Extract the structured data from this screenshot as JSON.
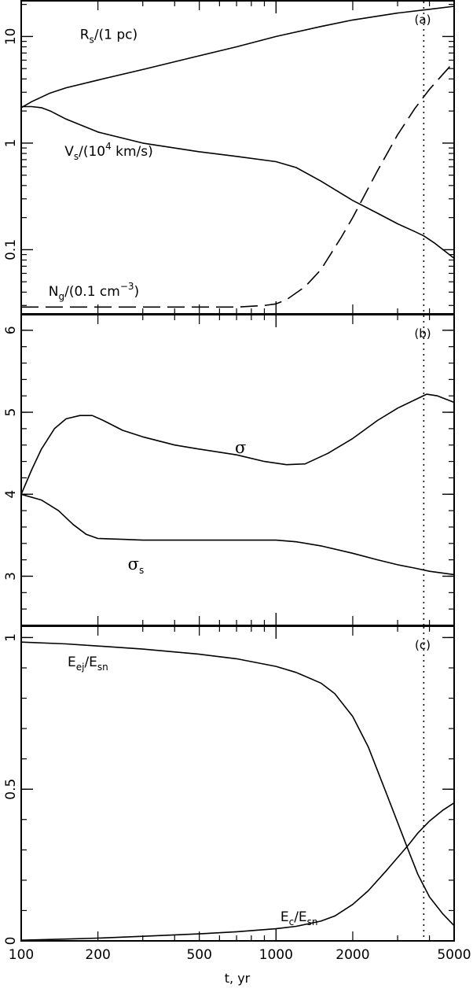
{
  "chart_data": [
    {
      "type": "line",
      "panel": "(a)",
      "x_scale": "log",
      "y_scale": "log",
      "xlim": [
        100,
        5000
      ],
      "ylim": [
        0.025,
        22
      ],
      "y_ticks": [
        {
          "v": 0.1,
          "label": "0.1"
        },
        {
          "v": 1,
          "label": "1"
        },
        {
          "v": 10,
          "label": "10"
        }
      ],
      "vline_x": 3800,
      "series": [
        {
          "id": "Rs",
          "style": "solid",
          "label": {
            "base": "R",
            "sub": "s",
            "rest": "/(1 pc)",
            "at_x": 170,
            "at_y": 9.5
          },
          "x": [
            100,
            110,
            130,
            150,
            200,
            300,
            500,
            700,
            1000,
            1500,
            2000,
            3000,
            4000,
            5000
          ],
          "y": [
            2.15,
            2.45,
            2.95,
            3.3,
            3.9,
            4.9,
            6.6,
            8.0,
            10.0,
            12.4,
            14.3,
            16.6,
            18.0,
            19.2
          ]
        },
        {
          "id": "Vs",
          "style": "solid",
          "label": {
            "base": "V",
            "sub": "s",
            "rest": "/(10",
            "sup": "4",
            "rest2": " km/s)",
            "at_x": 148,
            "at_y": 0.76
          },
          "x": [
            100,
            110,
            120,
            130,
            150,
            200,
            300,
            500,
            700,
            1000,
            1200,
            1500,
            2000,
            2500,
            3000,
            3500,
            3800,
            4200,
            5000
          ],
          "y": [
            2.2,
            2.2,
            2.15,
            2.0,
            1.68,
            1.27,
            1.0,
            0.83,
            0.75,
            0.67,
            0.59,
            0.44,
            0.29,
            0.22,
            0.175,
            0.148,
            0.135,
            0.115,
            0.083
          ]
        },
        {
          "id": "Ng",
          "style": "dashed",
          "label": {
            "base": "N",
            "sub": "g",
            "rest": "/(0.1 cm",
            "sup": "−3",
            "rest2": ")",
            "at_x": 128,
            "at_y": 0.037
          },
          "x": [
            100,
            300,
            500,
            700,
            900,
            1000,
            1100,
            1300,
            1500,
            1800,
            2000,
            2500,
            3000,
            3500,
            4000,
            5000
          ],
          "y": [
            0.029,
            0.029,
            0.029,
            0.029,
            0.03,
            0.031,
            0.034,
            0.045,
            0.065,
            0.13,
            0.2,
            0.55,
            1.2,
            2.1,
            3.2,
            5.8
          ]
        }
      ]
    },
    {
      "type": "line",
      "panel": "(b)",
      "x_scale": "log",
      "y_scale": "linear",
      "xlim": [
        100,
        5000
      ],
      "ylim": [
        2.4,
        6.2
      ],
      "y_ticks": [
        {
          "v": 3,
          "label": "3"
        },
        {
          "v": 4,
          "label": "4"
        },
        {
          "v": 5,
          "label": "5"
        },
        {
          "v": 6,
          "label": "6"
        }
      ],
      "vline_x": 3800,
      "series": [
        {
          "id": "sigma",
          "style": "solid",
          "label": {
            "base": "σ",
            "sub": "",
            "at_x": 690,
            "at_y": 4.5
          },
          "x": [
            100,
            110,
            120,
            135,
            150,
            170,
            190,
            210,
            250,
            300,
            400,
            500,
            700,
            900,
            1100,
            1300,
            1600,
            2000,
            2500,
            3000,
            3500,
            3900,
            4300,
            5000
          ],
          "y": [
            4.0,
            4.3,
            4.55,
            4.8,
            4.92,
            4.96,
            4.96,
            4.9,
            4.78,
            4.7,
            4.6,
            4.55,
            4.48,
            4.4,
            4.36,
            4.37,
            4.5,
            4.68,
            4.9,
            5.05,
            5.15,
            5.22,
            5.2,
            5.12
          ]
        },
        {
          "id": "sigma_s",
          "style": "solid",
          "label": {
            "base": "σ",
            "sub": "s",
            "at_x": 262,
            "at_y": 3.08
          },
          "x": [
            100,
            120,
            140,
            160,
            180,
            200,
            250,
            300,
            500,
            700,
            1000,
            1200,
            1500,
            2000,
            2500,
            3000,
            3500,
            4000,
            5000
          ],
          "y": [
            4.0,
            3.93,
            3.8,
            3.63,
            3.51,
            3.46,
            3.45,
            3.44,
            3.44,
            3.44,
            3.44,
            3.42,
            3.37,
            3.28,
            3.2,
            3.14,
            3.1,
            3.06,
            3.02
          ]
        }
      ]
    },
    {
      "type": "line",
      "panel": "(c)",
      "x_scale": "log",
      "y_scale": "linear",
      "xlim": [
        100,
        5000
      ],
      "ylim": [
        0,
        1.04
      ],
      "y_ticks": [
        {
          "v": 0,
          "label": "0"
        },
        {
          "v": 0.5,
          "label": "0.5"
        },
        {
          "v": 1,
          "label": "1"
        }
      ],
      "x_ticks": [
        {
          "v": 100,
          "label": "100"
        },
        {
          "v": 200,
          "label": "200"
        },
        {
          "v": 500,
          "label": "500"
        },
        {
          "v": 1000,
          "label": "1000"
        },
        {
          "v": 2000,
          "label": "2000"
        },
        {
          "v": 5000,
          "label": "5000"
        }
      ],
      "xlabel": "t, yr",
      "vline_x": 3800,
      "series": [
        {
          "id": "Eej",
          "style": "solid",
          "label": {
            "base": "E",
            "sub": "ej",
            "rest": "/E",
            "sub2": "sn",
            "at_x": 152,
            "at_y": 0.905
          },
          "x": [
            100,
            150,
            200,
            300,
            500,
            700,
            1000,
            1200,
            1500,
            1700,
            2000,
            2300,
            2700,
            3000,
            3300,
            3600,
            4000,
            4500,
            5000
          ],
          "y": [
            0.985,
            0.979,
            0.972,
            0.962,
            0.945,
            0.93,
            0.905,
            0.885,
            0.85,
            0.815,
            0.74,
            0.64,
            0.49,
            0.39,
            0.3,
            0.22,
            0.145,
            0.09,
            0.05
          ]
        },
        {
          "id": "Ec",
          "style": "solid",
          "label": {
            "base": "E",
            "sub": "c",
            "rest": "/E",
            "sub2": "sn",
            "at_x": 1040,
            "at_y": 0.065
          },
          "x": [
            100,
            150,
            200,
            300,
            500,
            700,
            1000,
            1200,
            1500,
            1700,
            2000,
            2300,
            2700,
            3000,
            3300,
            3600,
            4000,
            4500,
            5000
          ],
          "y": [
            0.002,
            0.006,
            0.009,
            0.015,
            0.023,
            0.03,
            0.04,
            0.048,
            0.065,
            0.082,
            0.12,
            0.165,
            0.23,
            0.275,
            0.315,
            0.355,
            0.395,
            0.43,
            0.455
          ]
        }
      ]
    }
  ]
}
